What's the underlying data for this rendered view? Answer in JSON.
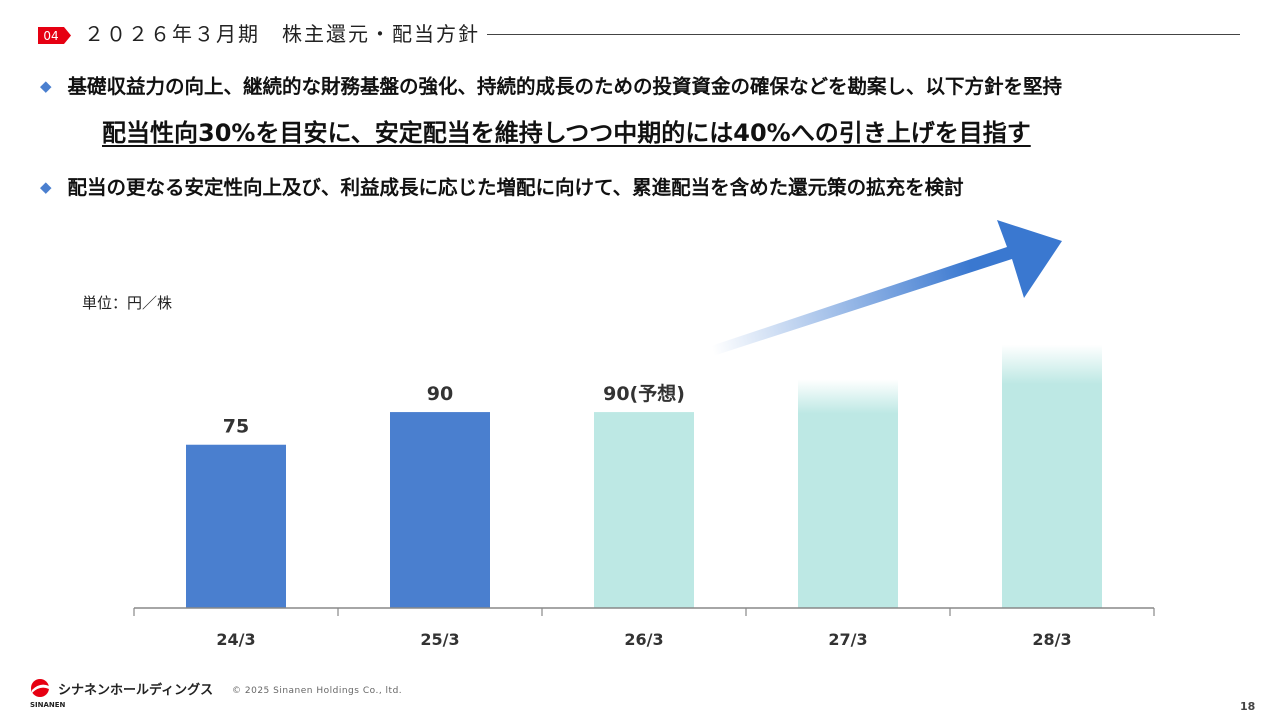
{
  "header": {
    "section_number": "04",
    "title": "２０２６年３月期　株主還元・配当方針"
  },
  "bullets": [
    "基礎収益力の向上、継続的な財務基盤の強化、持続的成長のための投資資金の確保などを勘案し、以下方針を堅持",
    "配当の更なる安定性向上及び、利益成長に応じた増配に向けて、累進配当を含めた還元策の拡充を検討"
  ],
  "highlight": "配当性向30%を目安に、安定配当を維持しつつ中期的には40%への引き上げを目指す",
  "chart_data": {
    "type": "bar",
    "unit_label": "単位：円／株",
    "categories": [
      "24/3",
      "25/3",
      "26/3",
      "27/3",
      "28/3"
    ],
    "values": [
      75,
      90,
      90,
      null,
      null
    ],
    "data_labels": [
      "75",
      "90",
      "90(予想)",
      "",
      ""
    ],
    "bar_styles": [
      "actual",
      "actual",
      "forecast",
      "target",
      "target"
    ],
    "target_levels": [
      null,
      null,
      null,
      105,
      121
    ],
    "ylim": [
      0,
      130
    ],
    "grid": false,
    "legend": "none",
    "trend_arrow": true,
    "colors": {
      "actual": "#4a7fcf",
      "forecast": "#bde8e4",
      "target": "#bde8e4",
      "arrow": "#3a78d0",
      "axis": "#888888"
    }
  },
  "footer": {
    "company_name": "シナネンホールディングス",
    "company_name_en": "SINANEN",
    "copyright": "© 2025 Sinanen Holdings Co., ltd.",
    "page_number": "18"
  }
}
